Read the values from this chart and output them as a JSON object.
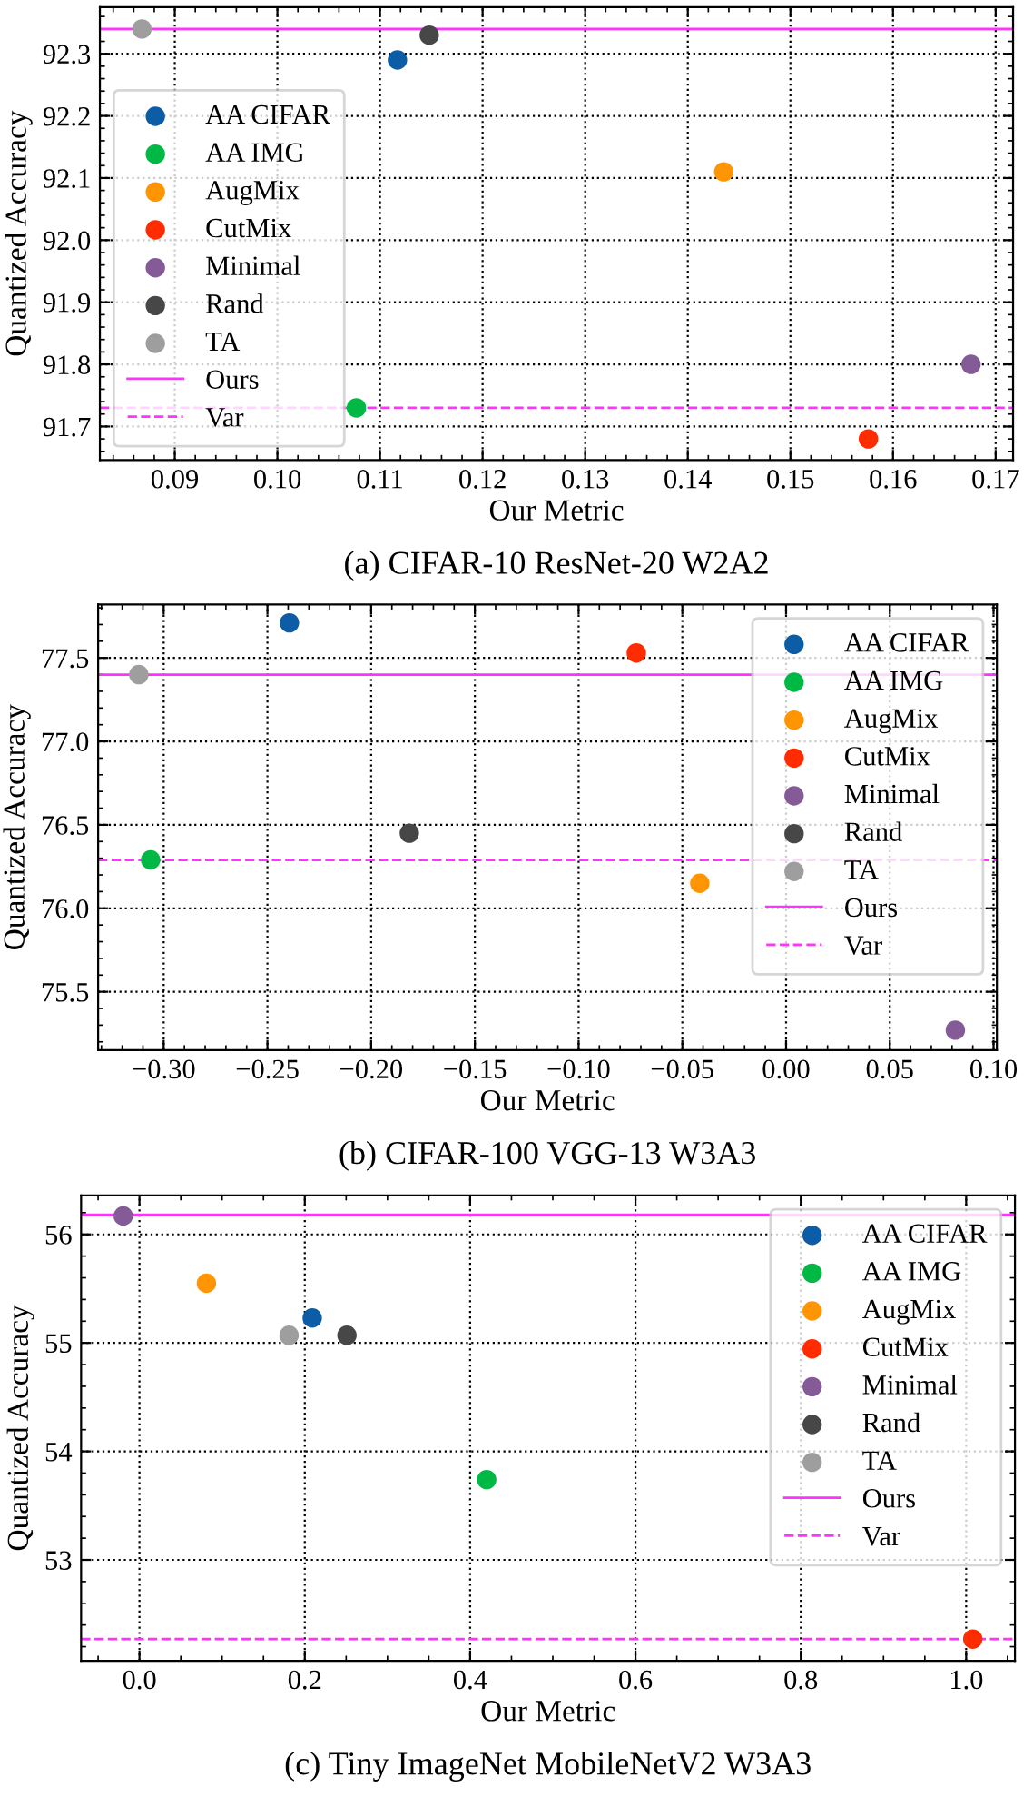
{
  "chart_data": [
    {
      "type": "scatter",
      "title": "(a) CIFAR-10 ResNet-20 W2A2",
      "xlabel": "Our Metric",
      "ylabel": "Quantized Accuracy",
      "xlim": [
        0.0827,
        0.1717
      ],
      "ylim": [
        91.646,
        92.375
      ],
      "xticks": [
        0.09,
        {
          "value": 0.1,
          "label": "0.10"
        },
        0.11,
        0.12,
        0.13,
        0.14,
        0.15,
        0.16,
        0.17
      ],
      "yticks": [
        91.7,
        91.8,
        91.9,
        {
          "value": 92,
          "label": "92.0"
        },
        92.1,
        92.2,
        92.3
      ],
      "grid": true,
      "legend": "lower left",
      "marker": "circle",
      "series": [
        {
          "name": "AA CIFAR",
          "color": "#0c5da5",
          "x": [
            0.1117
          ],
          "values": [
            92.29
          ]
        },
        {
          "name": "AA IMG",
          "color": "#00b945",
          "x": [
            0.1077
          ],
          "values": [
            91.73
          ]
        },
        {
          "name": "AugMix",
          "color": "#ff9500",
          "x": [
            0.1435
          ],
          "values": [
            92.11
          ]
        },
        {
          "name": "CutMix",
          "color": "#ff2c00",
          "x": [
            0.1576
          ],
          "values": [
            91.68
          ]
        },
        {
          "name": "Minimal",
          "color": "#845b97",
          "x": [
            0.1676
          ],
          "values": [
            91.8
          ]
        },
        {
          "name": "Rand",
          "color": "#474747",
          "x": [
            0.1148
          ],
          "values": [
            92.33
          ]
        },
        {
          "name": "TA",
          "color": "#9e9e9e",
          "x": [
            0.0868
          ],
          "values": [
            92.34
          ]
        }
      ],
      "ref_lines": [
        {
          "axis": "y",
          "value": 92.34,
          "label": "Ours",
          "color": "#ff33ff",
          "line_style": "solid"
        },
        {
          "axis": "y",
          "value": 91.73,
          "label": "Var",
          "color": "#ff33ff",
          "line_style": "dashed"
        }
      ]
    },
    {
      "type": "scatter",
      "title": "(b) CIFAR-100 VGG-13 W3A3",
      "xlabel": "Our Metric",
      "ylabel": "Quantized Accuracy",
      "xlim": [
        -0.3316,
        0.1016
      ],
      "ylim": [
        75.15,
        77.82
      ],
      "xticks": [
        {
          "value": -0.3,
          "label": "−0.30"
        },
        {
          "value": -0.25,
          "label": "−0.25"
        },
        {
          "value": -0.2,
          "label": "−0.20"
        },
        {
          "value": -0.15,
          "label": "−0.15"
        },
        {
          "value": -0.1,
          "label": "−0.10"
        },
        {
          "value": -0.05,
          "label": "−0.05"
        },
        {
          "value": 0,
          "label": "0.00"
        },
        {
          "value": 0.05,
          "label": "0.05"
        },
        {
          "value": 0.1,
          "label": "0.10"
        }
      ],
      "yticks": [
        75.5,
        {
          "value": 76,
          "label": "76.0"
        },
        76.5,
        {
          "value": 77,
          "label": "77.0"
        },
        77.5
      ],
      "grid": true,
      "legend": "upper right",
      "marker": "circle",
      "series": [
        {
          "name": "AA CIFAR",
          "color": "#0c5da5",
          "x": [
            -0.2394
          ],
          "values": [
            77.71
          ]
        },
        {
          "name": "AA IMG",
          "color": "#00b945",
          "x": [
            -0.3063
          ],
          "values": [
            76.29
          ]
        },
        {
          "name": "AugMix",
          "color": "#ff9500",
          "x": [
            -0.0416
          ],
          "values": [
            76.15
          ]
        },
        {
          "name": "CutMix",
          "color": "#ff2c00",
          "x": [
            -0.0722
          ],
          "values": [
            77.53
          ]
        },
        {
          "name": "Minimal",
          "color": "#845b97",
          "x": [
            0.0816
          ],
          "values": [
            75.27
          ]
        },
        {
          "name": "Rand",
          "color": "#474747",
          "x": [
            -0.1816
          ],
          "values": [
            76.45
          ]
        },
        {
          "name": "TA",
          "color": "#9e9e9e",
          "x": [
            -0.312
          ],
          "values": [
            77.4
          ]
        }
      ],
      "ref_lines": [
        {
          "axis": "y",
          "value": 77.4,
          "label": "Ours",
          "color": "#ff33ff",
          "line_style": "solid"
        },
        {
          "axis": "y",
          "value": 76.29,
          "label": "Var",
          "color": "#ff33ff",
          "line_style": "dashed"
        }
      ]
    },
    {
      "type": "scatter",
      "title": "(c) Tiny ImageNet MobileNetV2 W3A3",
      "xlabel": "Our Metric",
      "ylabel": "Quantized Accuracy",
      "xlim": [
        -0.0706,
        1.059
      ],
      "ylim": [
        52.07,
        56.36
      ],
      "xticks": [
        {
          "value": 0,
          "label": "0.0"
        },
        0.2,
        0.4,
        0.6,
        0.8,
        {
          "value": 1,
          "label": "1.0"
        }
      ],
      "yticks": [
        53,
        54,
        55,
        56
      ],
      "grid": true,
      "legend": "upper right",
      "marker": "circle",
      "series": [
        {
          "name": "AA CIFAR",
          "color": "#0c5da5",
          "x": [
            0.209
          ],
          "values": [
            55.23
          ]
        },
        {
          "name": "AA IMG",
          "color": "#00b945",
          "x": [
            0.42
          ],
          "values": [
            53.74
          ]
        },
        {
          "name": "AugMix",
          "color": "#ff9500",
          "x": [
            0.081
          ],
          "values": [
            55.55
          ]
        },
        {
          "name": "CutMix",
          "color": "#ff2c00",
          "x": [
            1.008
          ],
          "values": [
            52.27
          ]
        },
        {
          "name": "Minimal",
          "color": "#845b97",
          "x": [
            -0.0196
          ],
          "values": [
            56.17
          ]
        },
        {
          "name": "Rand",
          "color": "#474747",
          "x": [
            0.251
          ],
          "values": [
            55.07
          ]
        },
        {
          "name": "TA",
          "color": "#9e9e9e",
          "x": [
            0.181
          ],
          "values": [
            55.07
          ]
        }
      ],
      "ref_lines": [
        {
          "axis": "y",
          "value": 56.18,
          "label": "Ours",
          "color": "#ff33ff",
          "line_style": "solid"
        },
        {
          "axis": "y",
          "value": 52.27,
          "label": "Var",
          "color": "#ff33ff",
          "line_style": "dashed"
        }
      ]
    }
  ]
}
